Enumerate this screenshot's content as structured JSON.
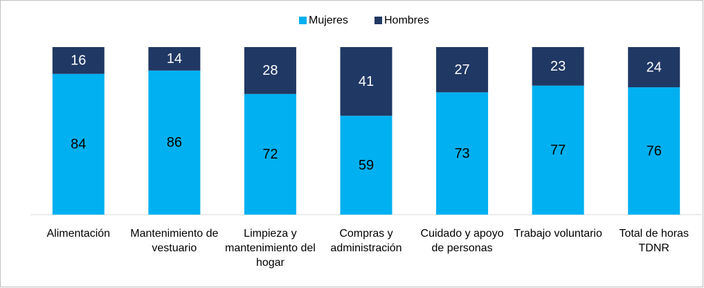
{
  "chart_data": {
    "type": "stacked_bar",
    "categories": [
      "Alimentación",
      "Mantenimiento de vestuario",
      "Limpieza y mantenimiento del hogar",
      "Compras y administración",
      "Cuidado y apoyo de personas",
      "Trabajo voluntario",
      "Total de horas TDNR"
    ],
    "series": [
      {
        "name": "Mujeres",
        "color": "#00b0f0",
        "values": [
          84,
          86,
          72,
          59,
          73,
          77,
          76
        ]
      },
      {
        "name": "Hombres",
        "color": "#203864",
        "values": [
          16,
          14,
          28,
          41,
          27,
          23,
          24
        ]
      }
    ],
    "ylim": [
      0,
      100
    ],
    "legend": "top"
  }
}
